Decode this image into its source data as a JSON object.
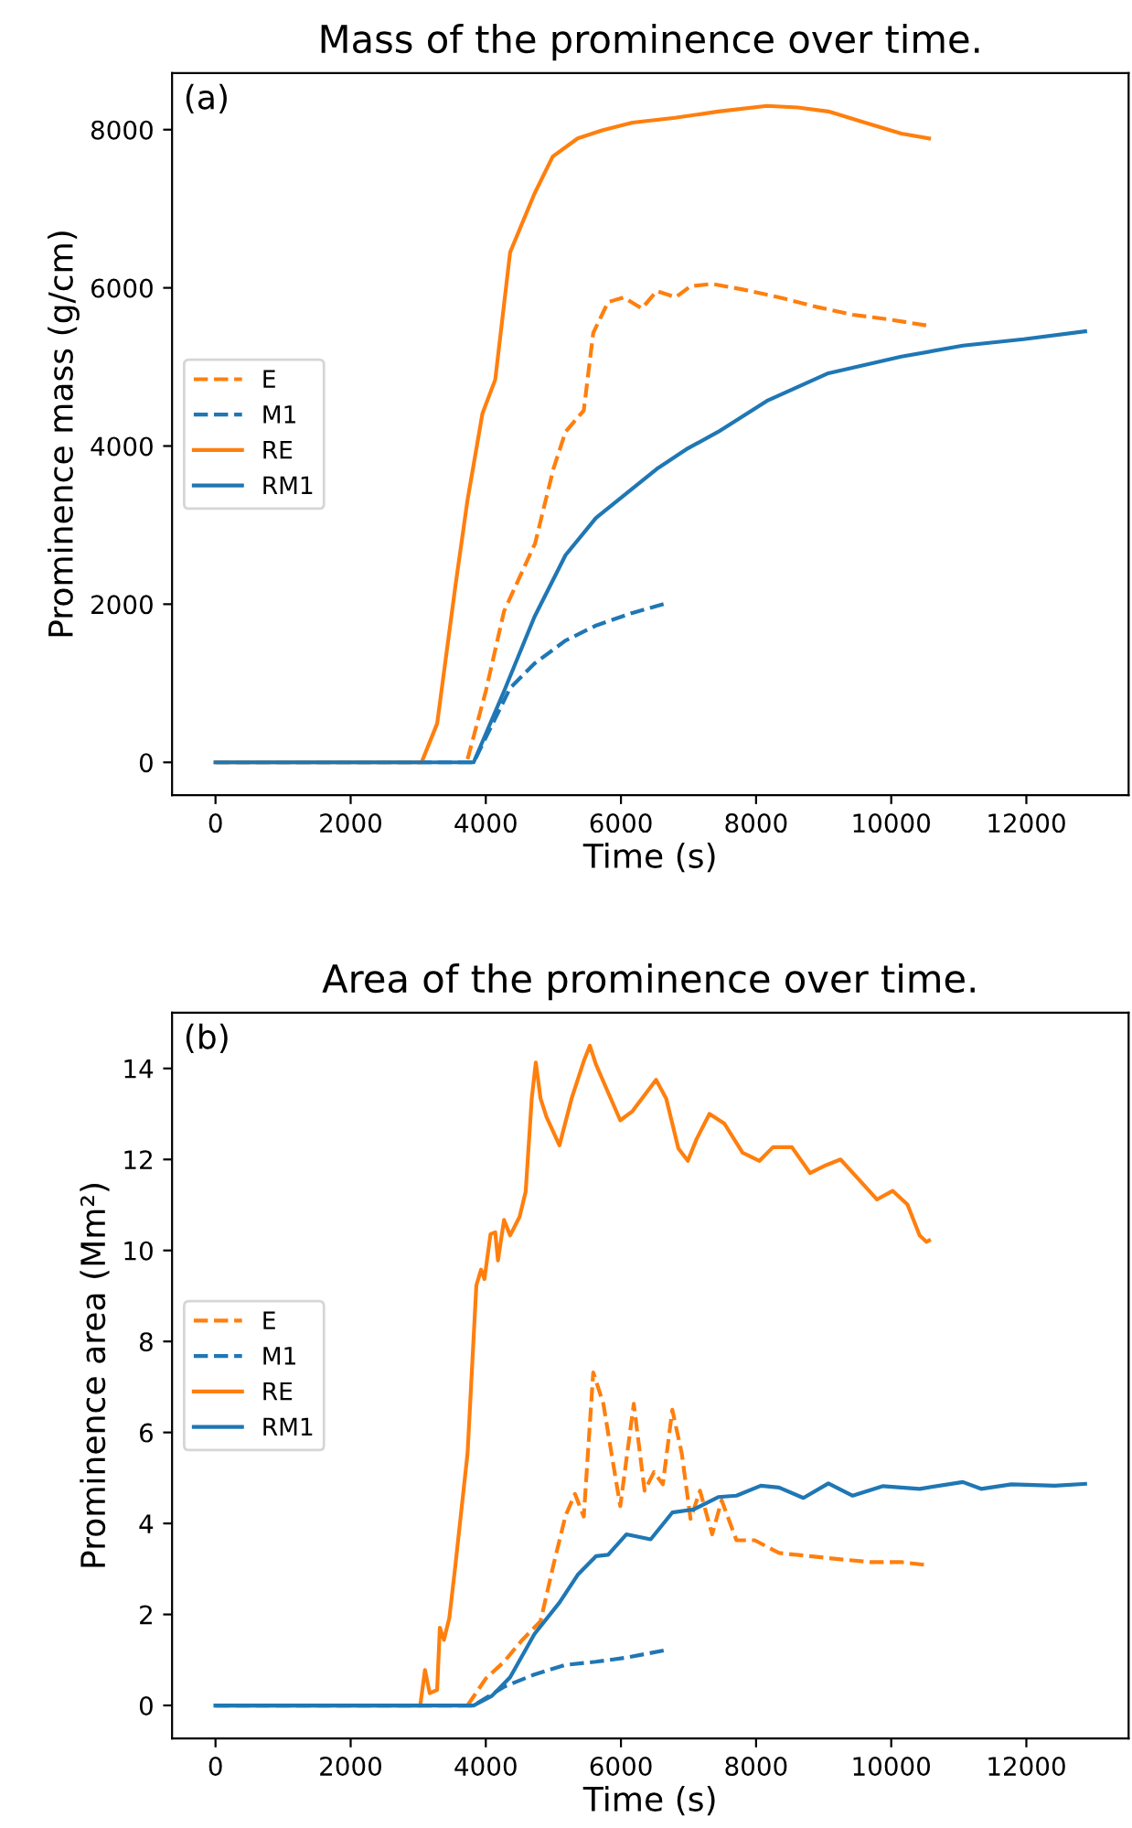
{
  "chart_data": [
    {
      "type": "line",
      "title": "Mass of the prominence over time.",
      "xlabel": "Time (s)",
      "ylabel": "Prominence mass (g/cm)",
      "annotations": [
        "(a)"
      ],
      "xlim": [
        -643,
        13513
      ],
      "xticks": [
        0,
        2000,
        4000,
        6000,
        8000,
        10000,
        12000
      ],
      "ylim": [
        -415,
        8715
      ],
      "yticks": [
        0,
        2000,
        4000,
        6000,
        8000
      ],
      "grid": false,
      "legend": "left",
      "series": [
        {
          "name": "E",
          "color": "#ff7f0e",
          "line_style": "dashed",
          "x": [
            3730,
            4000,
            4270,
            4730,
            5000,
            5180,
            5450,
            5590,
            5810,
            6040,
            6310,
            6530,
            6810,
            7030,
            7350,
            7800,
            8340,
            8890,
            9430,
            9970,
            10560
          ],
          "values": [
            40,
            900,
            1910,
            2770,
            3710,
            4180,
            4450,
            5430,
            5820,
            5880,
            5740,
            5960,
            5880,
            6020,
            6050,
            5980,
            5880,
            5760,
            5660,
            5600,
            5520
          ]
        },
        {
          "name": "M1",
          "color": "#1f77b4",
          "line_style": "dashed",
          "x": [
            0,
            3820,
            4360,
            4720,
            5180,
            5630,
            6170,
            6670
          ],
          "values": [
            0,
            0,
            940,
            1250,
            1540,
            1730,
            1890,
            2010
          ]
        },
        {
          "name": "RE",
          "color": "#ff7f0e",
          "line_style": "solid",
          "x": [
            0,
            3050,
            3280,
            3550,
            3730,
            3950,
            4140,
            4360,
            4720,
            4990,
            5360,
            5720,
            6170,
            6800,
            7440,
            8160,
            8620,
            9070,
            9610,
            10150,
            10560
          ],
          "values": [
            0,
            0,
            490,
            2230,
            3320,
            4410,
            4840,
            6450,
            7190,
            7660,
            7890,
            7990,
            8090,
            8150,
            8230,
            8300,
            8280,
            8230,
            8090,
            7950,
            7890
          ]
        },
        {
          "name": "RM1",
          "color": "#1f77b4",
          "line_style": "solid",
          "x": [
            0,
            3820,
            4270,
            4720,
            5180,
            5630,
            6080,
            6530,
            6990,
            7440,
            8160,
            9070,
            10150,
            11060,
            11960,
            12870
          ],
          "values": [
            0,
            0,
            900,
            1840,
            2620,
            3090,
            3400,
            3710,
            3970,
            4180,
            4570,
            4920,
            5130,
            5270,
            5350,
            5450
          ]
        }
      ]
    },
    {
      "type": "line",
      "title": "Area of the prominence over time.",
      "xlabel": "Time (s)",
      "ylabel": "Prominence area (Mm²)",
      "annotations": [
        "(b)"
      ],
      "xlim": [
        -643,
        13513
      ],
      "xticks": [
        0,
        2000,
        4000,
        6000,
        8000,
        10000,
        12000
      ],
      "ylim": [
        -0.725,
        15.225
      ],
      "yticks": [
        0,
        2,
        4,
        6,
        8,
        10,
        12,
        14
      ],
      "grid": false,
      "legend": "left",
      "series": [
        {
          "name": "E",
          "color": "#ff7f0e",
          "line_style": "dashed",
          "x": [
            3730,
            4000,
            4270,
            4540,
            4810,
            5000,
            5180,
            5320,
            5450,
            5590,
            5740,
            5860,
            5990,
            6190,
            6350,
            6490,
            6620,
            6760,
            6900,
            7030,
            7170,
            7350,
            7490,
            7710,
            7980,
            8340,
            8800,
            9250,
            9700,
            10150,
            10560
          ],
          "values": [
            0,
            0.59,
            0.96,
            1.44,
            1.85,
            3.08,
            4.17,
            4.65,
            4.15,
            7.32,
            6.63,
            5.54,
            4.38,
            6.63,
            4.72,
            5.13,
            4.86,
            6.5,
            5.54,
            4.1,
            4.72,
            3.76,
            4.51,
            3.63,
            3.63,
            3.35,
            3.28,
            3.21,
            3.15,
            3.15,
            3.08
          ]
        },
        {
          "name": "M1",
          "color": "#1f77b4",
          "line_style": "dashed",
          "x": [
            0,
            3820,
            4270,
            4720,
            5180,
            5630,
            6080,
            6710
          ],
          "values": [
            0,
            0,
            0.41,
            0.68,
            0.89,
            0.96,
            1.05,
            1.23
          ]
        },
        {
          "name": "RE",
          "color": "#ff7f0e",
          "line_style": "solid",
          "x": [
            0,
            3030,
            3100,
            3170,
            3280,
            3320,
            3380,
            3460,
            3550,
            3730,
            3860,
            3930,
            3980,
            4070,
            4140,
            4180,
            4270,
            4360,
            4500,
            4590,
            4680,
            4740,
            4810,
            4900,
            5090,
            5270,
            5450,
            5540,
            5630,
            5770,
            5990,
            6170,
            6520,
            6670,
            6850,
            6990,
            7120,
            7310,
            7530,
            7800,
            8050,
            8250,
            8530,
            8800,
            9030,
            9250,
            9520,
            9790,
            10020,
            10240,
            10420,
            10520,
            10560
          ],
          "values": [
            0,
            0,
            0.78,
            0.27,
            0.34,
            1.71,
            1.44,
            1.92,
            3.08,
            5.54,
            9.23,
            9.58,
            9.37,
            10.36,
            10.4,
            9.78,
            10.67,
            10.33,
            10.74,
            11.29,
            13.34,
            14.13,
            13.34,
            12.93,
            12.31,
            13.34,
            14.16,
            14.5,
            14.09,
            13.61,
            12.86,
            13.06,
            13.75,
            13.34,
            12.24,
            11.97,
            12.45,
            13.0,
            12.79,
            12.15,
            11.97,
            12.27,
            12.27,
            11.7,
            11.87,
            12.0,
            11.56,
            11.12,
            11.31,
            11.01,
            10.33,
            10.19,
            10.22
          ]
        },
        {
          "name": "RM1",
          "color": "#1f77b4",
          "line_style": "solid",
          "x": [
            0,
            3820,
            4090,
            4360,
            4720,
            5090,
            5360,
            5630,
            5810,
            6080,
            6440,
            6760,
            7080,
            7440,
            7710,
            8070,
            8340,
            8700,
            9070,
            9430,
            9880,
            10420,
            11060,
            11330,
            11780,
            12420,
            12870
          ],
          "values": [
            0,
            0,
            0.21,
            0.62,
            1.57,
            2.26,
            2.87,
            3.28,
            3.31,
            3.76,
            3.65,
            4.24,
            4.31,
            4.58,
            4.61,
            4.83,
            4.79,
            4.56,
            4.88,
            4.61,
            4.82,
            4.76,
            4.91,
            4.76,
            4.86,
            4.83,
            4.87
          ]
        }
      ]
    }
  ]
}
